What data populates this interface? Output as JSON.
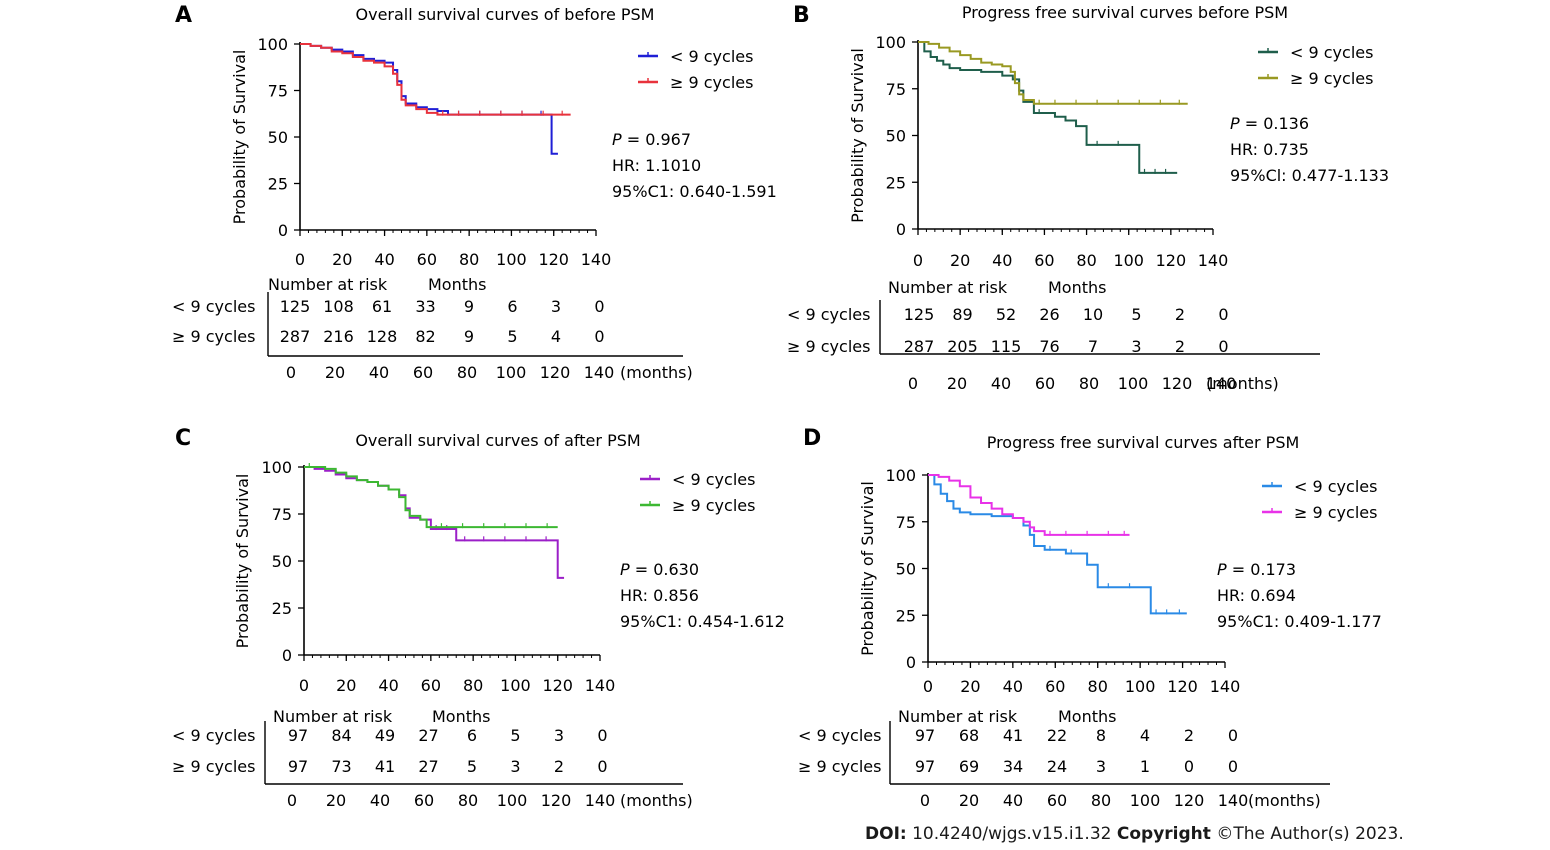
{
  "footer": {
    "doi_label": "DOI:",
    "doi_value": "10.4240/wjgs.v15.i1.32",
    "copyright_label": "Copyright",
    "copyright_value": "©The Author(s) 2023."
  },
  "chart_data": [
    {
      "type": "line",
      "panel_letter": "A",
      "title": "Overall survival curves of before PSM",
      "xlabel": "",
      "ylabel": "Probability of Survival",
      "xlim": [
        0,
        140
      ],
      "ylim": [
        0,
        100
      ],
      "xticks": [
        0,
        20,
        40,
        60,
        80,
        100,
        120,
        140
      ],
      "yticks": [
        0,
        25,
        50,
        75,
        100
      ],
      "grid": false,
      "legend_position": "top-right",
      "series": [
        {
          "name": "< 9 cycles",
          "color": "#1f1fd6",
          "x": [
            0,
            5,
            10,
            15,
            20,
            25,
            30,
            35,
            40,
            44,
            46,
            48,
            50,
            55,
            60,
            65,
            70,
            80,
            90,
            100,
            110,
            118,
            119,
            122
          ],
          "y": [
            100,
            99,
            98,
            97,
            96,
            94,
            92,
            91,
            90,
            86,
            80,
            72,
            68,
            66,
            65,
            64,
            62,
            62,
            62,
            62,
            62,
            62,
            41,
            41
          ]
        },
        {
          "name": "≥ 9 cycles",
          "color": "#e8323c",
          "x": [
            0,
            5,
            10,
            15,
            20,
            25,
            30,
            35,
            40,
            44,
            46,
            48,
            50,
            55,
            60,
            65,
            70,
            80,
            90,
            100,
            110,
            120,
            128
          ],
          "y": [
            100,
            99,
            98,
            96,
            95,
            93,
            91,
            90,
            88,
            84,
            78,
            70,
            67,
            65,
            63,
            62,
            62,
            62,
            62,
            62,
            62,
            62,
            62
          ]
        }
      ],
      "stats": {
        "p": "= 0.967",
        "hr": "HR: 1.1010",
        "ci": "95%C1: 0.640-1.591"
      },
      "risk_table": {
        "header_label": "Number at risk",
        "header_months": "Months",
        "rows": [
          {
            "label": "< 9 cycles",
            "values": [
              "125",
              "108",
              "61",
              "33",
              "9",
              "6",
              "3",
              "0"
            ]
          },
          {
            "label": "≥ 9 cycles",
            "values": [
              "287",
              "216",
              "128",
              "82",
              "9",
              "5",
              "4",
              "0"
            ]
          }
        ],
        "axis_ticks": [
          "0",
          "20",
          "40",
          "60",
          "80",
          "100",
          "120",
          "140"
        ],
        "axis_unit": "(months)"
      }
    },
    {
      "type": "line",
      "panel_letter": "B",
      "title": "Progress  free survival curves before PSM",
      "xlabel": "",
      "ylabel": "Probability of Survival",
      "xlim": [
        0,
        140
      ],
      "ylim": [
        0,
        100
      ],
      "xticks": [
        0,
        20,
        40,
        60,
        80,
        100,
        120,
        140
      ],
      "yticks": [
        0,
        25,
        50,
        75,
        100
      ],
      "grid": false,
      "legend_position": "top-right",
      "series": [
        {
          "name": "< 9 cycles",
          "color": "#1f5e4b",
          "x": [
            0,
            3,
            6,
            9,
            12,
            15,
            20,
            30,
            40,
            45,
            48,
            50,
            55,
            60,
            65,
            70,
            75,
            80,
            90,
            100,
            105,
            110,
            115,
            120,
            123
          ],
          "y": [
            100,
            95,
            92,
            90,
            88,
            86,
            85,
            84,
            82,
            80,
            74,
            68,
            62,
            62,
            60,
            58,
            55,
            45,
            45,
            45,
            30,
            30,
            30,
            30,
            30
          ]
        },
        {
          "name": "≥ 9 cycles",
          "color": "#999922",
          "x": [
            0,
            5,
            10,
            15,
            20,
            25,
            30,
            35,
            40,
            44,
            46,
            48,
            50,
            55,
            60,
            70,
            80,
            90,
            100,
            110,
            120,
            128
          ],
          "y": [
            100,
            99,
            97,
            95,
            93,
            91,
            89,
            88,
            87,
            84,
            78,
            72,
            69,
            67,
            67,
            67,
            67,
            67,
            67,
            67,
            67,
            67
          ]
        }
      ],
      "stats": {
        "p": "= 0.136",
        "hr": "HR: 0.735",
        "ci": "95%Cl: 0.477-1.133"
      },
      "risk_table": {
        "header_label": "Number at risk",
        "header_months": "Months",
        "rows": [
          {
            "label": "< 9 cycles",
            "values": [
              "125",
              "89",
              "52",
              "26",
              "10",
              "5",
              "2",
              "0"
            ]
          },
          {
            "label": "≥ 9 cycles",
            "values": [
              "287",
              "205",
              "115",
              "76",
              "7",
              "3",
              "2",
              "0"
            ]
          }
        ],
        "axis_ticks": [
          "0",
          "20",
          "40",
          "60",
          "80",
          "100",
          "120",
          "140"
        ],
        "axis_unit": "(months)"
      }
    },
    {
      "type": "line",
      "panel_letter": "C",
      "title": "Overall survival curves of after PSM",
      "xlabel": "",
      "ylabel": "Probability of Survival",
      "xlim": [
        0,
        140
      ],
      "ylim": [
        0,
        100
      ],
      "xticks": [
        0,
        20,
        40,
        60,
        80,
        100,
        120,
        140
      ],
      "yticks": [
        0,
        25,
        50,
        75,
        100
      ],
      "grid": false,
      "legend_position": "top-right",
      "series": [
        {
          "name": "< 9 cycles",
          "color": "#9b1fc8",
          "x": [
            0,
            5,
            10,
            15,
            20,
            25,
            30,
            35,
            40,
            45,
            48,
            50,
            55,
            60,
            65,
            70,
            72,
            80,
            90,
            100,
            110,
            119,
            120,
            123
          ],
          "y": [
            100,
            99,
            98,
            96,
            94,
            93,
            92,
            90,
            88,
            85,
            78,
            73,
            72,
            67,
            67,
            67,
            61,
            61,
            61,
            61,
            61,
            61,
            41,
            41
          ]
        },
        {
          "name": "≥ 9 cycles",
          "color": "#3cb832",
          "x": [
            0,
            5,
            10,
            15,
            20,
            25,
            30,
            35,
            40,
            45,
            48,
            50,
            55,
            58,
            60,
            70,
            80,
            90,
            100,
            110,
            120
          ],
          "y": [
            100,
            100,
            99,
            97,
            95,
            93,
            92,
            90,
            88,
            84,
            77,
            74,
            72,
            68,
            68,
            68,
            68,
            68,
            68,
            68,
            68
          ]
        }
      ],
      "stats": {
        "p": "= 0.630",
        "hr": "HR: 0.856",
        "ci": "95%C1: 0.454-1.612"
      },
      "risk_table": {
        "header_label": "Number at risk",
        "header_months": "Months",
        "rows": [
          {
            "label": "< 9 cycles",
            "values": [
              "97",
              "84",
              "49",
              "27",
              "6",
              "5",
              "3",
              "0"
            ]
          },
          {
            "label": "≥ 9 cycles",
            "values": [
              "97",
              "73",
              "41",
              "27",
              "5",
              "3",
              "2",
              "0"
            ]
          }
        ],
        "axis_ticks": [
          "0",
          "20",
          "40",
          "60",
          "80",
          "100",
          "120",
          "140"
        ],
        "axis_unit": "(months)"
      }
    },
    {
      "type": "line",
      "panel_letter": "D",
      "title": "Progress  free survival curves after PSM",
      "xlabel": "",
      "ylabel": "Probability of Survival",
      "xlim": [
        0,
        140
      ],
      "ylim": [
        0,
        100
      ],
      "xticks": [
        0,
        20,
        40,
        60,
        80,
        100,
        120,
        140
      ],
      "yticks": [
        0,
        25,
        50,
        75,
        100
      ],
      "grid": false,
      "legend_position": "top-right",
      "series": [
        {
          "name": "< 9 cycles",
          "color": "#2a8ae6",
          "x": [
            0,
            3,
            6,
            9,
            12,
            15,
            20,
            30,
            40,
            45,
            48,
            50,
            55,
            60,
            65,
            70,
            75,
            80,
            90,
            100,
            105,
            110,
            115,
            122
          ],
          "y": [
            100,
            95,
            90,
            86,
            82,
            80,
            79,
            78,
            77,
            73,
            68,
            62,
            60,
            60,
            58,
            58,
            52,
            40,
            40,
            40,
            26,
            26,
            26,
            26
          ]
        },
        {
          "name": "≥ 9 cycles",
          "color": "#e832e8",
          "x": [
            0,
            5,
            10,
            15,
            20,
            25,
            30,
            35,
            40,
            45,
            48,
            50,
            55,
            60,
            70,
            80,
            90,
            95
          ],
          "y": [
            100,
            99,
            97,
            94,
            88,
            85,
            82,
            79,
            77,
            75,
            72,
            70,
            68,
            68,
            68,
            68,
            68,
            68
          ]
        }
      ],
      "stats": {
        "p": "= 0.173",
        "hr": "HR: 0.694",
        "ci": "95%C1: 0.409-1.177"
      },
      "risk_table": {
        "header_label": "Number at risk",
        "header_months": "Months",
        "rows": [
          {
            "label": "< 9 cycles",
            "values": [
              "97",
              "68",
              "41",
              "22",
              "8",
              "4",
              "2",
              "0"
            ]
          },
          {
            "label": "≥ 9 cycles",
            "values": [
              "97",
              "69",
              "34",
              "24",
              "3",
              "1",
              "0",
              "0"
            ]
          }
        ],
        "axis_ticks": [
          "0",
          "20",
          "40",
          "60",
          "80",
          "100",
          "120",
          "140"
        ],
        "axis_unit": "(months)"
      }
    }
  ]
}
